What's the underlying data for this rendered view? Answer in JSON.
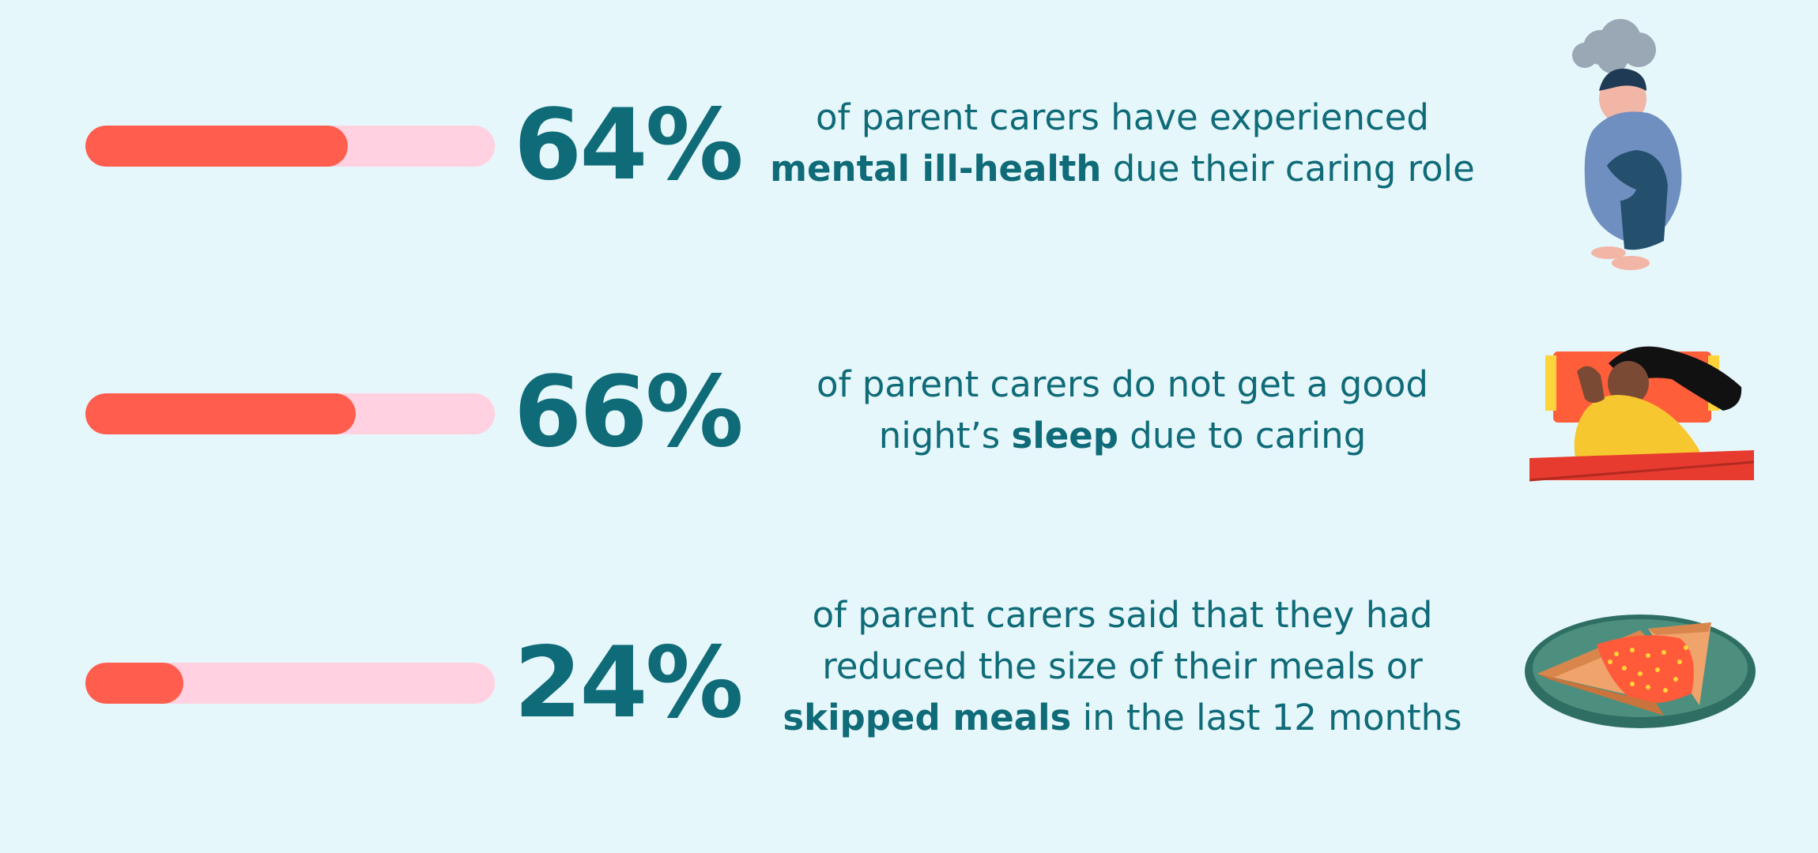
{
  "stats": [
    {
      "percent_label": "64%",
      "percent_value": 64,
      "line1": "of parent carers have experienced",
      "line2_bold": "mental ill-health",
      "line2_rest": " due their caring role",
      "illustration": "sad-person-icon"
    },
    {
      "percent_label": "66%",
      "percent_value": 66,
      "line1": "of parent carers do not get a good",
      "line2_pre": "night’s ",
      "line2_bold": "sleep",
      "line2_rest": " due to caring",
      "illustration": "sleeping-person-icon"
    },
    {
      "percent_label": "24%",
      "percent_value": 24,
      "line1": "of parent carers said that they had",
      "line2": "reduced the size of their meals or",
      "line3_bold": "skipped meals",
      "line3_rest": " in the last 12 months",
      "illustration": "pizza-plate-icon"
    }
  ],
  "colors": {
    "background": "#e6f7fb",
    "bar_track": "#ffd1e1",
    "bar_fill": "#ff5e4e",
    "text": "#0f6b78"
  }
}
